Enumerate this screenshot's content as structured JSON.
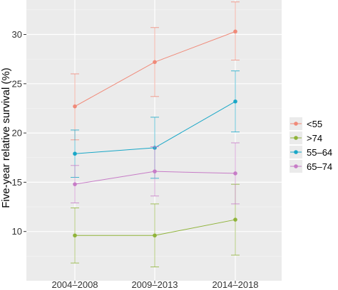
{
  "chart_data": {
    "type": "line",
    "title": "",
    "xlabel": "",
    "ylabel": "Five-year relative survival (%)",
    "categories": [
      "2004–2008",
      "2009–2013",
      "2014–2018"
    ],
    "ylim": [
      5,
      33.5
    ],
    "yticks": [
      10,
      15,
      20,
      25,
      30
    ],
    "grid": true,
    "legend_placement": "right",
    "series": [
      {
        "name": "<55",
        "color": "#F08A79",
        "values": [
          22.7,
          27.2,
          30.3
        ],
        "lower": [
          19.3,
          23.7,
          27.4
        ],
        "upper": [
          26.0,
          30.7,
          33.3
        ]
      },
      {
        "name": ">74",
        "color": "#8FB339",
        "values": [
          9.6,
          9.6,
          11.2
        ],
        "lower": [
          6.8,
          6.4,
          7.6
        ],
        "upper": [
          12.4,
          12.8,
          14.8
        ]
      },
      {
        "name": "55–64",
        "color": "#19A7C7",
        "values": [
          17.9,
          18.5,
          23.2
        ],
        "lower": [
          15.5,
          15.4,
          20.1
        ],
        "upper": [
          20.3,
          21.6,
          26.3
        ]
      },
      {
        "name": "65–74",
        "color": "#C77CC7",
        "values": [
          14.8,
          16.1,
          15.9
        ],
        "lower": [
          12.9,
          13.6,
          12.8
        ],
        "upper": [
          16.7,
          18.6,
          19.0
        ]
      }
    ]
  }
}
